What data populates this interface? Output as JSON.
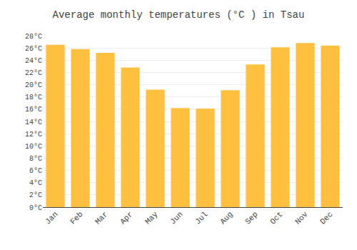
{
  "chart_data": {
    "type": "bar",
    "title": "Average monthly temperatures (°C ) in Tsau",
    "categories": [
      "Jan",
      "Feb",
      "Mar",
      "Apr",
      "May",
      "Jun",
      "Jul",
      "Aug",
      "Sep",
      "Oct",
      "Nov",
      "Dec"
    ],
    "values": [
      26.5,
      25.8,
      25.2,
      22.8,
      19.2,
      16.2,
      16.1,
      19.1,
      23.3,
      26.1,
      26.8,
      26.4
    ],
    "color": "#FFC040",
    "ylim": [
      0,
      28
    ],
    "yticks": [
      {
        "value": 0,
        "label": "0°C"
      },
      {
        "value": 2,
        "label": "2°C"
      },
      {
        "value": 4,
        "label": "4°C"
      },
      {
        "value": 6,
        "label": "6°C"
      },
      {
        "value": 8,
        "label": "8°C"
      },
      {
        "value": 10,
        "label": "10°C"
      },
      {
        "value": 12,
        "label": "12°C"
      },
      {
        "value": 14,
        "label": "14°C"
      },
      {
        "value": 16,
        "label": "16°C"
      },
      {
        "value": 18,
        "label": "18°C"
      },
      {
        "value": 20,
        "label": "20°C"
      },
      {
        "value": 22,
        "label": "22°C"
      },
      {
        "value": 24,
        "label": "24°C"
      },
      {
        "value": 26,
        "label": "26°C"
      },
      {
        "value": 28,
        "label": "28°C"
      }
    ],
    "grid": true
  }
}
